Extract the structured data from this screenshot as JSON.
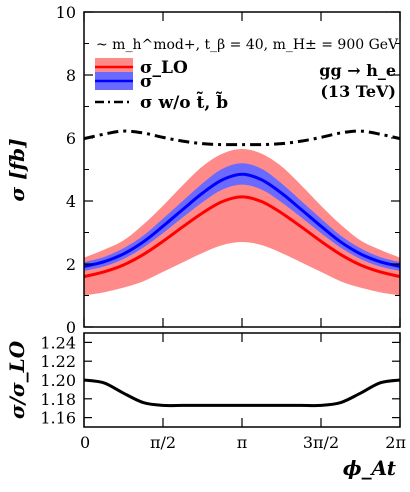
{
  "chart_data": [
    {
      "type": "line",
      "xlabel": "ϕ_At",
      "ylabel": "σ [fb]",
      "xlim": [
        0,
        6.2832
      ],
      "ylim": [
        0,
        10
      ],
      "y_ticks": [
        0,
        2,
        4,
        6,
        8,
        10
      ],
      "annotations": {
        "scenario": "~ m_h^mod+, t_β = 40, m_H± = 900 GeV",
        "process": "gg → h_e",
        "energy": "(13 TeV)"
      },
      "legend_position": "top-left",
      "x": [
        0,
        0.3927,
        0.7854,
        1.1781,
        1.5708,
        1.9635,
        2.3562,
        2.7489,
        3.1416,
        3.5343,
        3.927,
        4.3197,
        4.7124,
        5.1051,
        5.4978,
        5.8905,
        6.2832
      ],
      "series": [
        {
          "name": "σ_LO",
          "color": "#ff0000",
          "band_color": "#ff8a8a",
          "values": [
            1.6,
            1.75,
            1.97,
            2.3,
            2.72,
            3.18,
            3.62,
            3.98,
            4.13,
            3.98,
            3.62,
            3.18,
            2.72,
            2.3,
            1.97,
            1.75,
            1.6
          ],
          "band_low": [
            1.0,
            1.1,
            1.25,
            1.45,
            1.75,
            2.05,
            2.35,
            2.6,
            2.7,
            2.6,
            2.35,
            2.05,
            1.75,
            1.45,
            1.25,
            1.1,
            1.0
          ],
          "band_high": [
            2.2,
            2.45,
            2.75,
            3.25,
            3.85,
            4.5,
            5.1,
            5.5,
            5.65,
            5.5,
            5.1,
            4.5,
            3.85,
            3.25,
            2.75,
            2.45,
            2.2
          ]
        },
        {
          "name": "σ",
          "color": "#0000ff",
          "band_color": "#6a6aff",
          "values": [
            1.92,
            2.07,
            2.32,
            2.7,
            3.2,
            3.73,
            4.25,
            4.67,
            4.85,
            4.67,
            4.25,
            3.73,
            3.2,
            2.7,
            2.32,
            2.07,
            1.92
          ],
          "band_low": [
            1.78,
            1.92,
            2.16,
            2.52,
            2.98,
            3.48,
            3.96,
            4.36,
            4.52,
            4.36,
            3.96,
            3.48,
            2.98,
            2.52,
            2.16,
            1.92,
            1.78
          ],
          "band_high": [
            2.06,
            2.22,
            2.5,
            2.9,
            3.44,
            4.0,
            4.56,
            5.02,
            5.2,
            5.02,
            4.56,
            4.0,
            3.44,
            2.9,
            2.5,
            2.22,
            2.06
          ]
        },
        {
          "name": "σ w/o t̃, b̃",
          "color": "#000000",
          "dash": "dashdot",
          "values": [
            5.98,
            6.12,
            6.22,
            6.16,
            6.02,
            5.9,
            5.82,
            5.79,
            5.79,
            5.79,
            5.82,
            5.9,
            6.02,
            6.16,
            6.22,
            6.12,
            5.98
          ]
        }
      ]
    },
    {
      "type": "line",
      "xlabel": "ϕ_At",
      "ylabel": "σ/σ_LO",
      "xlim": [
        0,
        6.2832
      ],
      "ylim": [
        1.15,
        1.25
      ],
      "y_ticks": [
        1.16,
        1.18,
        1.2,
        1.22,
        1.24
      ],
      "x_ticks": [
        {
          "value": 0,
          "label": "0"
        },
        {
          "value": 1.5708,
          "label": "π/2"
        },
        {
          "value": 3.1416,
          "label": "π"
        },
        {
          "value": 4.7124,
          "label": "3π/2"
        },
        {
          "value": 6.2832,
          "label": "2π"
        }
      ],
      "x": [
        0,
        0.3927,
        0.7854,
        1.1781,
        1.5708,
        1.9635,
        2.3562,
        2.7489,
        3.1416,
        3.5343,
        3.927,
        4.3197,
        4.7124,
        5.1051,
        5.4978,
        5.8905,
        6.2832
      ],
      "series": [
        {
          "color": "#000000",
          "values": [
            1.2,
            1.197,
            1.186,
            1.176,
            1.173,
            1.173,
            1.173,
            1.173,
            1.173,
            1.173,
            1.173,
            1.173,
            1.173,
            1.176,
            1.186,
            1.197,
            1.2
          ]
        }
      ]
    }
  ]
}
